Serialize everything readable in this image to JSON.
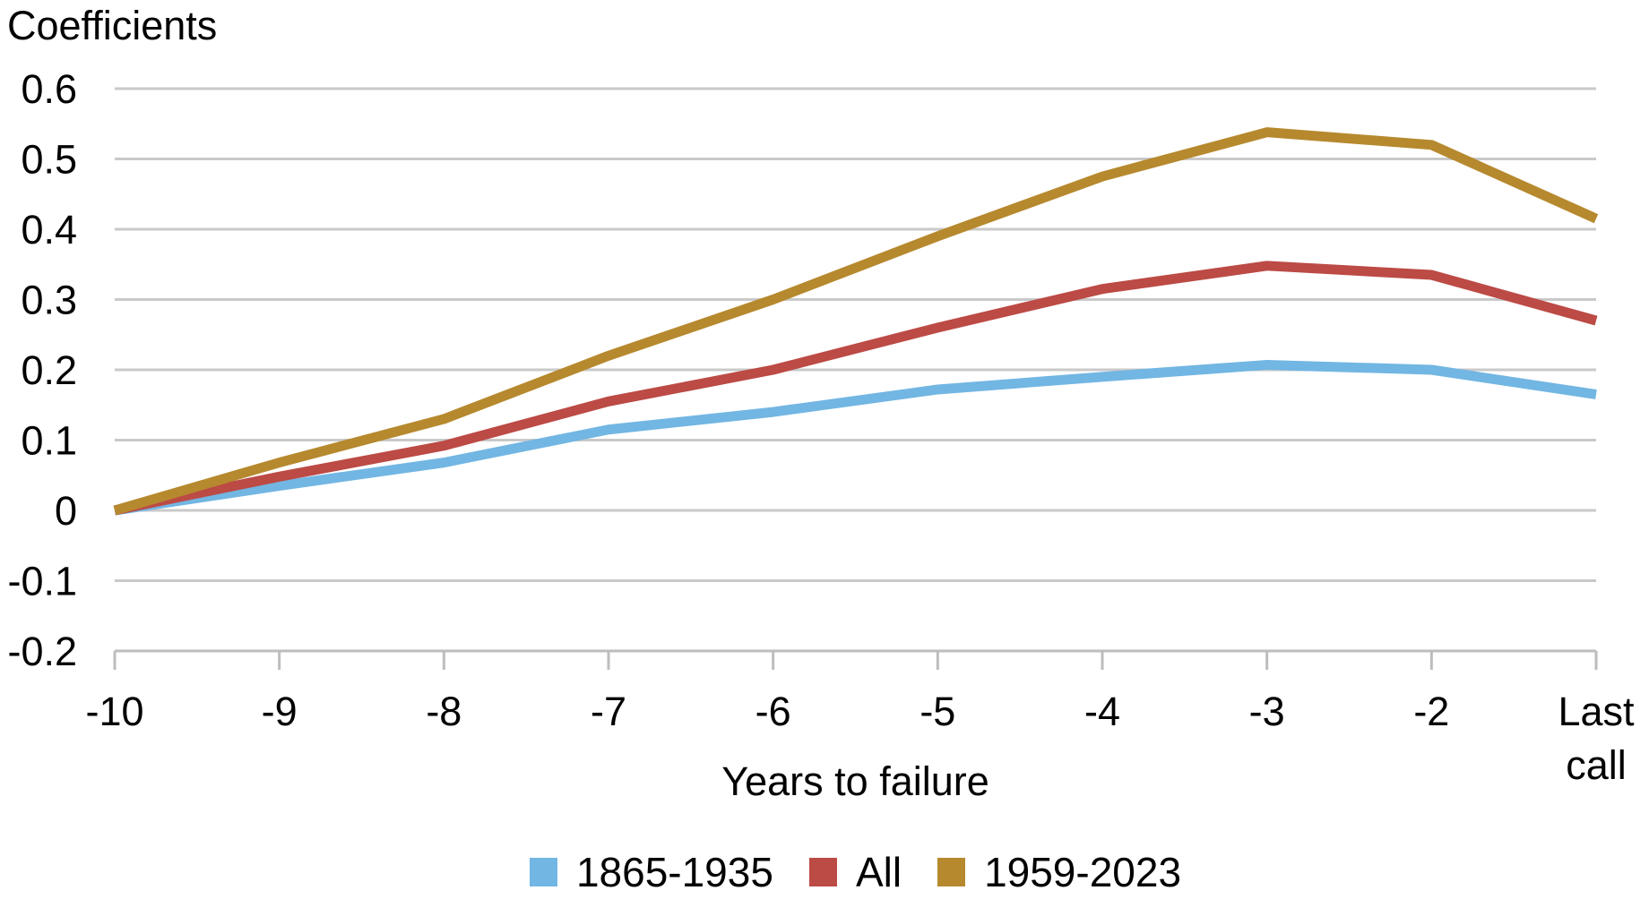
{
  "figure": {
    "title": "Coefficients",
    "x_axis_title": "Years to failure"
  },
  "chart_data": {
    "type": "line",
    "title": "Coefficients",
    "xlabel": "Years to failure",
    "ylabel": "Coefficients",
    "categories": [
      "-10",
      "-9",
      "-8",
      "-7",
      "-6",
      "-5",
      "-4",
      "-3",
      "-2",
      "Last call"
    ],
    "ylim": [
      -0.2,
      0.6
    ],
    "grid": "horizontal-only",
    "legend_position": "bottom-center",
    "gridline_color": "#C9C9C9",
    "axis_color": "#BDBDBD",
    "y_ticks": {
      "values": [
        0.6,
        0.5,
        0.4,
        0.3,
        0.2,
        0.1,
        0,
        -0.1,
        -0.2
      ],
      "labels": [
        "0.6",
        "0.5",
        "0.4",
        "0.3",
        "0.2",
        "0.1",
        "0",
        "-0.1",
        "-0.2"
      ]
    },
    "series": [
      {
        "name": "1865-1935",
        "color": "#72B6E3",
        "values": [
          0,
          0.035,
          0.068,
          0.115,
          0.14,
          0.172,
          0.19,
          0.207,
          0.2,
          0.165
        ]
      },
      {
        "name": "All",
        "color": "#BC4A45",
        "values": [
          0,
          0.048,
          0.092,
          0.155,
          0.2,
          0.26,
          0.315,
          0.348,
          0.335,
          0.27
        ]
      },
      {
        "name": "1959-2023",
        "color": "#B6892E",
        "values": [
          0,
          0.068,
          0.13,
          0.22,
          0.3,
          0.39,
          0.475,
          0.538,
          0.52,
          0.415
        ]
      }
    ]
  }
}
